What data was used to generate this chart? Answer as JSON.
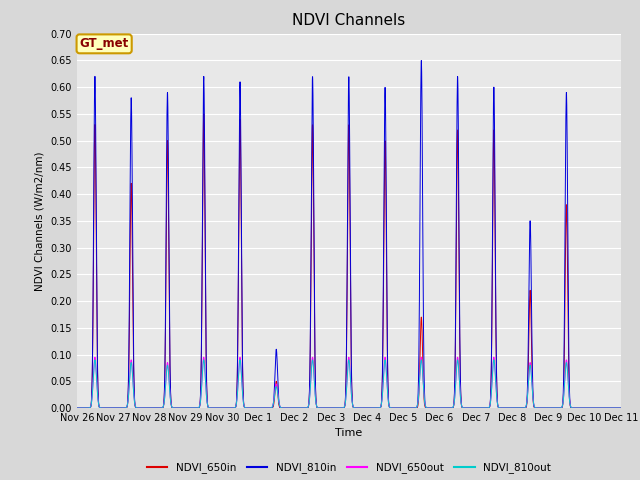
{
  "title": "NDVI Channels",
  "ylabel": "NDVI Channels (W/m2/nm)",
  "xlabel": "Time",
  "ylim": [
    0.0,
    0.7
  ],
  "yticks": [
    0.0,
    0.05,
    0.1,
    0.15,
    0.2,
    0.25,
    0.3,
    0.35,
    0.4,
    0.45,
    0.5,
    0.55,
    0.6,
    0.65,
    0.7
  ],
  "fig_bg_color": "#d8d8d8",
  "plot_bg_color": "#e8e8e8",
  "legend_labels": [
    "NDVI_650in",
    "NDVI_810in",
    "NDVI_650out",
    "NDVI_810out"
  ],
  "legend_colors": [
    "#dd0000",
    "#0000dd",
    "#ff00ff",
    "#00cccc"
  ],
  "annotation_text": "GT_met",
  "annotation_bg": "#ffffbb",
  "annotation_border": "#cc9900",
  "annotation_text_color": "#880000",
  "xtick_labels": [
    "Nov 26",
    "Nov 27",
    "Nov 28",
    "Nov 29",
    "Nov 30",
    "Dec 1",
    "Dec 2",
    "Dec 3",
    "Dec 4",
    "Dec 5",
    "Dec 6",
    "Dec 7",
    "Dec 8",
    "Dec 9",
    "Dec 10",
    "Dec 11"
  ],
  "day_peaks_810in": [
    0.62,
    0.58,
    0.59,
    0.62,
    0.61,
    0.11,
    0.62,
    0.62,
    0.6,
    0.65,
    0.62,
    0.6,
    0.35,
    0.59,
    0.0
  ],
  "day_peaks_650in": [
    0.53,
    0.42,
    0.5,
    0.55,
    0.54,
    0.05,
    0.53,
    0.53,
    0.5,
    0.17,
    0.52,
    0.52,
    0.22,
    0.38,
    0.0
  ],
  "day_peaks_650out": [
    0.095,
    0.09,
    0.085,
    0.095,
    0.095,
    0.045,
    0.095,
    0.095,
    0.095,
    0.095,
    0.095,
    0.095,
    0.085,
    0.09,
    0.0
  ],
  "day_peaks_810out": [
    0.09,
    0.085,
    0.08,
    0.09,
    0.09,
    0.04,
    0.09,
    0.09,
    0.09,
    0.09,
    0.09,
    0.09,
    0.08,
    0.085,
    0.0
  ]
}
